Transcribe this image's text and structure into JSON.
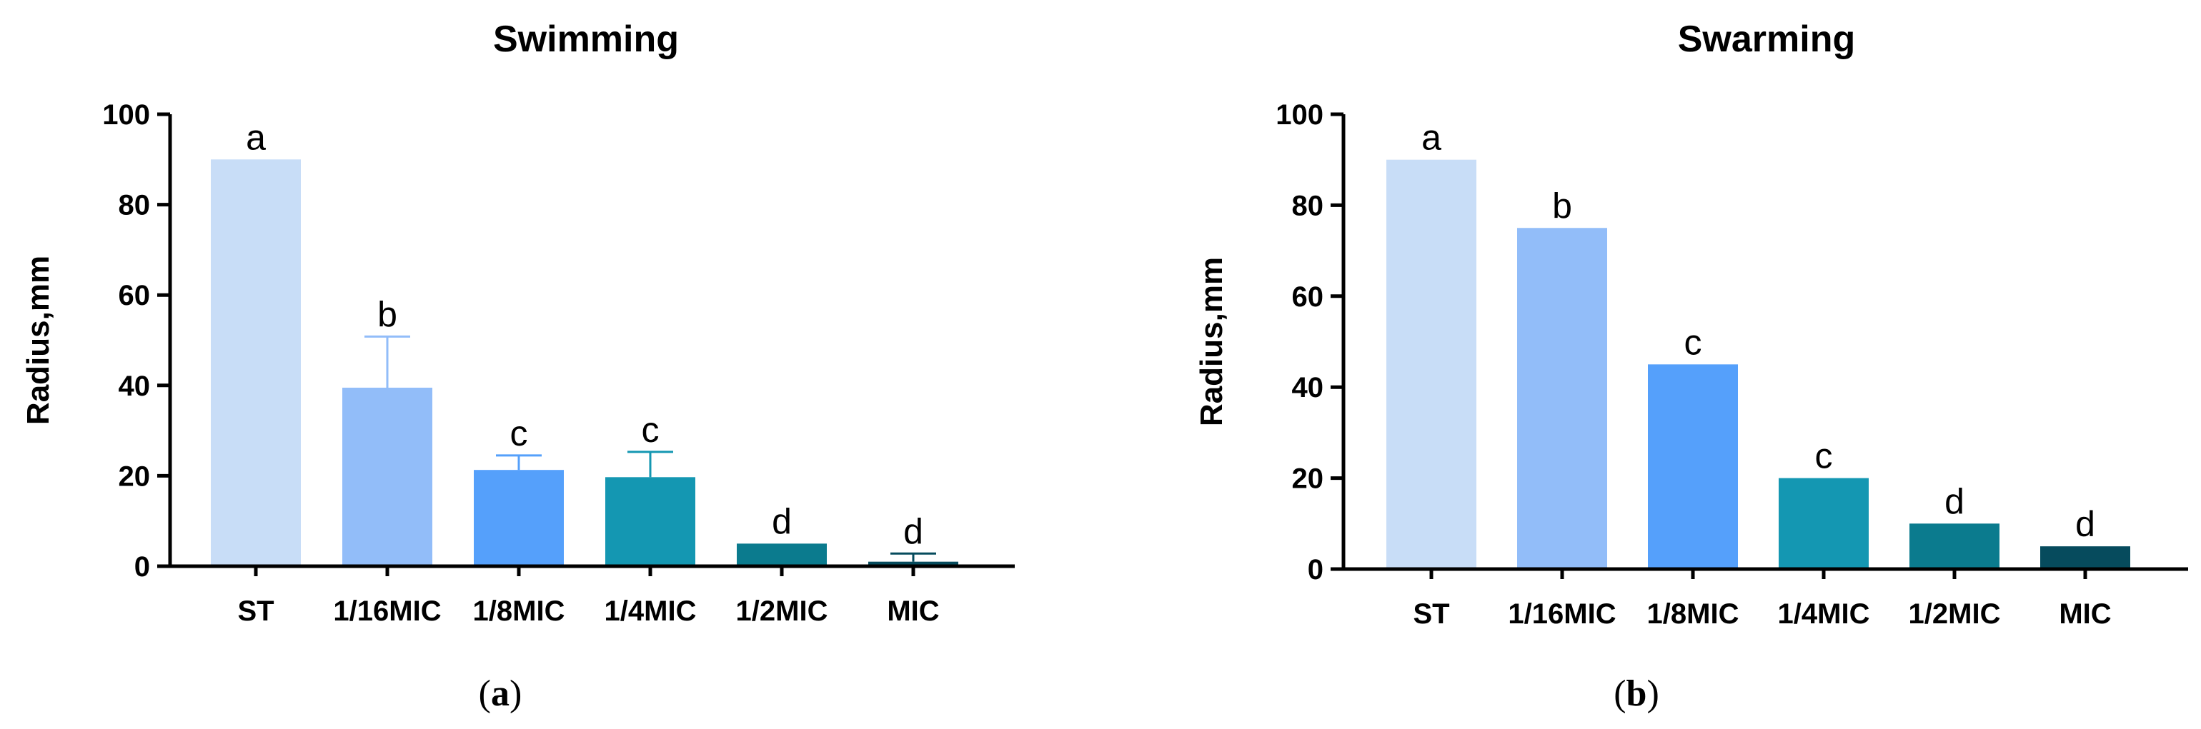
{
  "chart_data": [
    {
      "type": "bar",
      "title": "Swimming",
      "ylabel": "Radius,mm",
      "xlabel": "",
      "ylim": [
        0,
        100
      ],
      "yticks": [
        0,
        20,
        40,
        60,
        80,
        100
      ],
      "categories": [
        "ST",
        "1/16MIC",
        "1/8MIC",
        "1/4MIC",
        "1/2MIC",
        "MIC"
      ],
      "values": [
        90,
        39.5,
        21.3,
        19.7,
        5,
        1
      ],
      "errors": [
        0,
        11.3,
        3.2,
        5.6,
        0,
        1.8
      ],
      "significance_letters": [
        "a",
        "b",
        "c",
        "c",
        "d",
        "d"
      ],
      "colors": [
        "#c8ddf7",
        "#92bdf9",
        "#55a0fb",
        "#1497b2",
        "#0b7b8e",
        "#064b5d"
      ],
      "panel_label": {
        "open": "(",
        "letter": "a",
        "close": ")"
      }
    },
    {
      "type": "bar",
      "title": "Swarming",
      "ylabel": "Radius,mm",
      "xlabel": "",
      "ylim": [
        0,
        100
      ],
      "yticks": [
        0,
        20,
        40,
        60,
        80,
        100
      ],
      "categories": [
        "ST",
        "1/16MIC",
        "1/8MIC",
        "1/4MIC",
        "1/2MIC",
        "MIC"
      ],
      "values": [
        90,
        75,
        45,
        20,
        10,
        5
      ],
      "errors": [
        0,
        0,
        0,
        0,
        0,
        0
      ],
      "significance_letters": [
        "a",
        "b",
        "c",
        "c",
        "d",
        "d"
      ],
      "colors": [
        "#c8ddf7",
        "#92bdf9",
        "#55a0fb",
        "#1497b2",
        "#0b7b8e",
        "#064b5d"
      ],
      "panel_label": {
        "open": "(",
        "letter": "b",
        "close": ")"
      }
    }
  ]
}
